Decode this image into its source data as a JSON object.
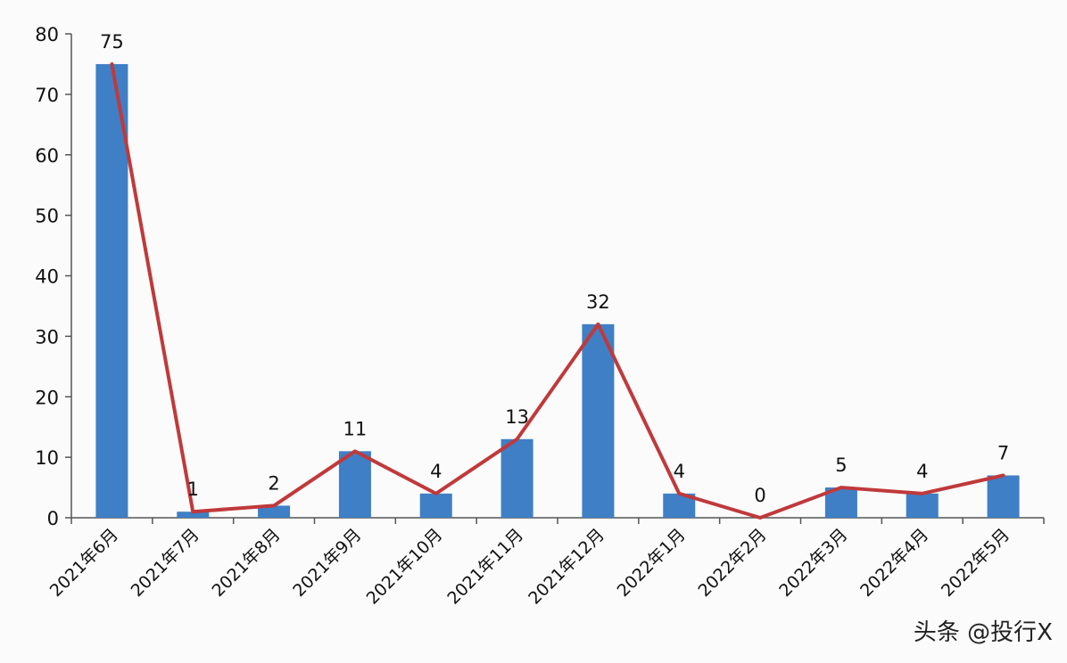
{
  "chart_data": {
    "type": "bar",
    "categories": [
      "2021年6月",
      "2021年7月",
      "2021年8月",
      "2021年9月",
      "2021年10月",
      "2021年11月",
      "2021年12月",
      "2022年1月",
      "2022年2月",
      "2022年3月",
      "2022年4月",
      "2022年5月"
    ],
    "series": [
      {
        "values": [
          75,
          1,
          2,
          11,
          4,
          13,
          32,
          4,
          0,
          5,
          4,
          7
        ],
        "type": "bar",
        "color": "#3f7fc6"
      },
      {
        "values": [
          75,
          1,
          2,
          11,
          4,
          13,
          32,
          4,
          0,
          5,
          4,
          7
        ],
        "type": "line",
        "color": "#c0393b"
      }
    ],
    "data_labels": [
      "75",
      "1",
      "2",
      "11",
      "4",
      "13",
      "32",
      "4",
      "0",
      "5",
      "4",
      "7"
    ],
    "ylim": [
      0,
      80
    ],
    "yticks": [
      "0",
      "10",
      "20",
      "30",
      "40",
      "50",
      "60",
      "70",
      "80"
    ],
    "grid": false,
    "legend": "none"
  },
  "watermark": "头条 @投行X"
}
